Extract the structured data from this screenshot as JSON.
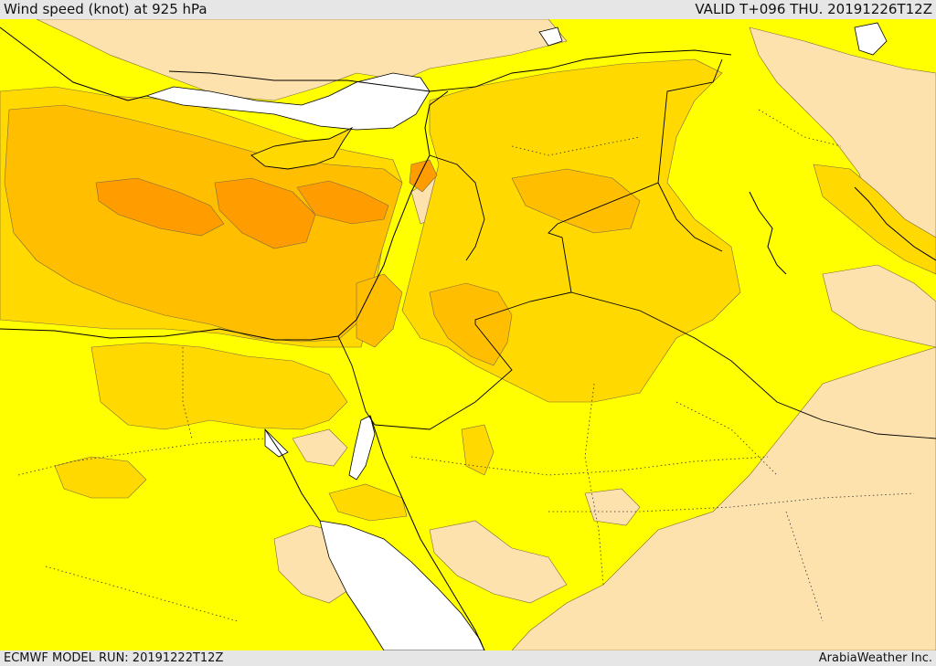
{
  "header": {
    "title": "Wind speed (knot) at 925 hPa",
    "valid": "VALID T+096 THU. 20191226T12Z"
  },
  "footer": {
    "model_run": "ECMWF MODEL RUN: 20191222T12Z",
    "credit": "ArabiaWeather Inc."
  },
  "colors": {
    "calm": "#fee2ae",
    "light": "#ffff00",
    "moderate": "#ffd900",
    "fresh": "#ffbf00",
    "strong": "#ff9d00",
    "water": "#ffffff",
    "border": "#000000"
  }
}
